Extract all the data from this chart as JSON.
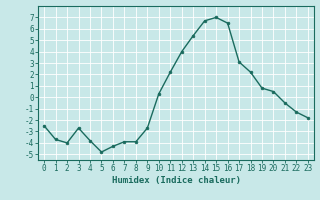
{
  "x": [
    0,
    1,
    2,
    3,
    4,
    5,
    6,
    7,
    8,
    9,
    10,
    11,
    12,
    13,
    14,
    15,
    16,
    17,
    18,
    19,
    20,
    21,
    22,
    23
  ],
  "y": [
    -2.5,
    -3.7,
    -4.0,
    -2.7,
    -3.8,
    -4.8,
    -4.3,
    -3.9,
    -3.9,
    -2.7,
    0.3,
    2.2,
    4.0,
    5.4,
    6.7,
    7.0,
    6.5,
    3.1,
    2.2,
    0.8,
    0.5,
    -0.5,
    -1.3,
    -1.8
  ],
  "line_color": "#1a6b5e",
  "marker": "o",
  "markersize": 2,
  "linewidth": 1.0,
  "xlabel": "Humidex (Indice chaleur)",
  "xlabel_fontsize": 6.5,
  "ylim": [
    -5.5,
    8.0
  ],
  "xlim": [
    -0.5,
    23.5
  ],
  "yticks": [
    -5,
    -4,
    -3,
    -2,
    -1,
    0,
    1,
    2,
    3,
    4,
    5,
    6,
    7
  ],
  "xticks": [
    0,
    1,
    2,
    3,
    4,
    5,
    6,
    7,
    8,
    9,
    10,
    11,
    12,
    13,
    14,
    15,
    16,
    17,
    18,
    19,
    20,
    21,
    22,
    23
  ],
  "bg_color": "#c8e8e8",
  "grid_color": "#ffffff",
  "tick_color": "#1a6b5e",
  "label_color": "#1a6b5e",
  "tick_fontsize": 5.5
}
